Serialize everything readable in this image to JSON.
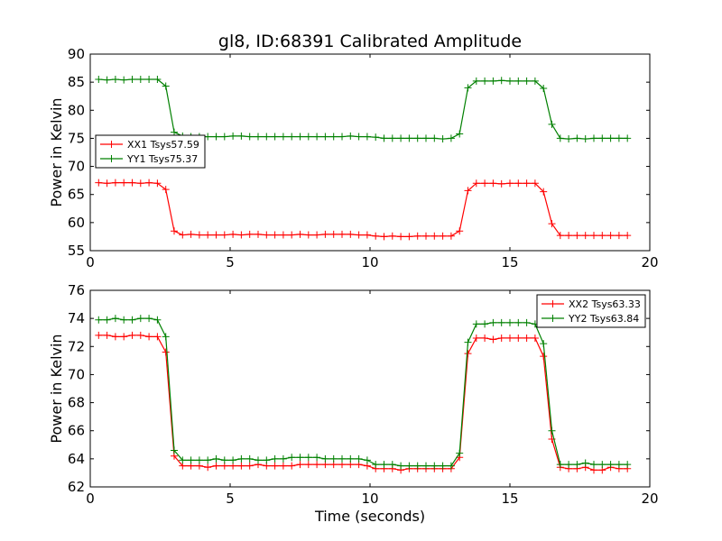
{
  "chart_data": [
    {
      "type": "line",
      "title": "gl8, ID:68391 Calibrated Amplitude",
      "xlabel": "",
      "ylabel": "Power in Kelvin",
      "xlim": [
        0,
        20
      ],
      "ylim": [
        55,
        90
      ],
      "xticks": [
        0,
        5,
        10,
        15,
        20
      ],
      "yticks": [
        55,
        60,
        65,
        70,
        75,
        80,
        85,
        90
      ],
      "legend_position": "center-left",
      "series": [
        {
          "name": "XX1 Tsys57.59",
          "color": "#ff0000",
          "x": [
            0.3,
            0.6,
            0.9,
            1.2,
            1.5,
            1.8,
            2.1,
            2.4,
            2.7,
            3.0,
            3.3,
            3.6,
            3.9,
            4.2,
            4.5,
            4.8,
            5.1,
            5.4,
            5.7,
            6.0,
            6.3,
            6.6,
            6.9,
            7.2,
            7.5,
            7.8,
            8.1,
            8.4,
            8.7,
            9.0,
            9.3,
            9.6,
            9.9,
            10.2,
            10.5,
            10.8,
            11.1,
            11.4,
            11.7,
            12.0,
            12.3,
            12.6,
            12.9,
            13.2,
            13.5,
            13.8,
            14.1,
            14.4,
            14.7,
            15.0,
            15.3,
            15.6,
            15.9,
            16.2,
            16.5,
            16.8,
            17.1,
            17.4,
            17.7,
            18.0,
            18.3,
            18.6,
            18.9,
            19.2
          ],
          "values": [
            67.1,
            67.0,
            67.1,
            67.1,
            67.1,
            67.0,
            67.1,
            67.0,
            65.9,
            58.5,
            57.8,
            57.9,
            57.8,
            57.8,
            57.8,
            57.8,
            57.9,
            57.8,
            57.9,
            57.9,
            57.8,
            57.8,
            57.8,
            57.8,
            57.9,
            57.8,
            57.8,
            57.9,
            57.9,
            57.9,
            57.9,
            57.8,
            57.8,
            57.6,
            57.5,
            57.6,
            57.5,
            57.5,
            57.6,
            57.6,
            57.6,
            57.6,
            57.6,
            58.5,
            65.7,
            67.0,
            67.0,
            67.0,
            66.9,
            67.0,
            67.0,
            67.0,
            67.0,
            65.5,
            59.8,
            57.7,
            57.7,
            57.7,
            57.7,
            57.7,
            57.7,
            57.7,
            57.7,
            57.7
          ]
        },
        {
          "name": "YY1 Tsys75.37",
          "color": "#008000",
          "x": [
            0.3,
            0.6,
            0.9,
            1.2,
            1.5,
            1.8,
            2.1,
            2.4,
            2.7,
            3.0,
            3.3,
            3.6,
            3.9,
            4.2,
            4.5,
            4.8,
            5.1,
            5.4,
            5.7,
            6.0,
            6.3,
            6.6,
            6.9,
            7.2,
            7.5,
            7.8,
            8.1,
            8.4,
            8.7,
            9.0,
            9.3,
            9.6,
            9.9,
            10.2,
            10.5,
            10.8,
            11.1,
            11.4,
            11.7,
            12.0,
            12.3,
            12.6,
            12.9,
            13.2,
            13.5,
            13.8,
            14.1,
            14.4,
            14.7,
            15.0,
            15.3,
            15.6,
            15.9,
            16.2,
            16.5,
            16.8,
            17.1,
            17.4,
            17.7,
            18.0,
            18.3,
            18.6,
            18.9,
            19.2
          ],
          "values": [
            85.5,
            85.4,
            85.5,
            85.4,
            85.5,
            85.5,
            85.5,
            85.5,
            84.3,
            76.1,
            75.4,
            75.3,
            75.3,
            75.3,
            75.3,
            75.3,
            75.4,
            75.4,
            75.3,
            75.3,
            75.3,
            75.3,
            75.3,
            75.3,
            75.3,
            75.3,
            75.3,
            75.3,
            75.3,
            75.3,
            75.4,
            75.3,
            75.3,
            75.2,
            75.0,
            75.0,
            75.0,
            75.0,
            75.0,
            75.0,
            75.0,
            74.9,
            75.0,
            75.8,
            84.0,
            85.2,
            85.2,
            85.2,
            85.3,
            85.2,
            85.2,
            85.2,
            85.2,
            83.9,
            77.5,
            75.0,
            74.9,
            75.0,
            74.9,
            75.0,
            75.0,
            75.0,
            75.0,
            75.0
          ]
        }
      ]
    },
    {
      "type": "line",
      "title": "",
      "xlabel": "Time (seconds)",
      "ylabel": "Power in Kelvin",
      "xlim": [
        0,
        20
      ],
      "ylim": [
        62,
        76
      ],
      "xticks": [
        0,
        5,
        10,
        15,
        20
      ],
      "yticks": [
        62,
        64,
        66,
        68,
        70,
        72,
        74,
        76
      ],
      "legend_position": "top-right",
      "series": [
        {
          "name": "XX2 Tsys63.33",
          "color": "#ff0000",
          "x": [
            0.3,
            0.6,
            0.9,
            1.2,
            1.5,
            1.8,
            2.1,
            2.4,
            2.7,
            3.0,
            3.3,
            3.6,
            3.9,
            4.2,
            4.5,
            4.8,
            5.1,
            5.4,
            5.7,
            6.0,
            6.3,
            6.6,
            6.9,
            7.2,
            7.5,
            7.8,
            8.1,
            8.4,
            8.7,
            9.0,
            9.3,
            9.6,
            9.9,
            10.2,
            10.5,
            10.8,
            11.1,
            11.4,
            11.7,
            12.0,
            12.3,
            12.6,
            12.9,
            13.2,
            13.5,
            13.8,
            14.1,
            14.4,
            14.7,
            15.0,
            15.3,
            15.6,
            15.9,
            16.2,
            16.5,
            16.8,
            17.1,
            17.4,
            17.7,
            18.0,
            18.3,
            18.6,
            18.9,
            19.2
          ],
          "values": [
            72.8,
            72.8,
            72.7,
            72.7,
            72.8,
            72.8,
            72.7,
            72.7,
            71.6,
            64.2,
            63.5,
            63.5,
            63.5,
            63.4,
            63.5,
            63.5,
            63.5,
            63.5,
            63.5,
            63.6,
            63.5,
            63.5,
            63.5,
            63.5,
            63.6,
            63.6,
            63.6,
            63.6,
            63.6,
            63.6,
            63.6,
            63.6,
            63.5,
            63.3,
            63.3,
            63.3,
            63.2,
            63.3,
            63.3,
            63.3,
            63.3,
            63.3,
            63.3,
            64.1,
            71.5,
            72.6,
            72.6,
            72.5,
            72.6,
            72.6,
            72.6,
            72.6,
            72.6,
            71.3,
            65.4,
            63.4,
            63.3,
            63.3,
            63.4,
            63.2,
            63.2,
            63.4,
            63.3,
            63.3
          ]
        },
        {
          "name": "YY2 Tsys63.84",
          "color": "#008000",
          "x": [
            0.3,
            0.6,
            0.9,
            1.2,
            1.5,
            1.8,
            2.1,
            2.4,
            2.7,
            3.0,
            3.3,
            3.6,
            3.9,
            4.2,
            4.5,
            4.8,
            5.1,
            5.4,
            5.7,
            6.0,
            6.3,
            6.6,
            6.9,
            7.2,
            7.5,
            7.8,
            8.1,
            8.4,
            8.7,
            9.0,
            9.3,
            9.6,
            9.9,
            10.2,
            10.5,
            10.8,
            11.1,
            11.4,
            11.7,
            12.0,
            12.3,
            12.6,
            12.9,
            13.2,
            13.5,
            13.8,
            14.1,
            14.4,
            14.7,
            15.0,
            15.3,
            15.6,
            15.9,
            16.2,
            16.5,
            16.8,
            17.1,
            17.4,
            17.7,
            18.0,
            18.3,
            18.6,
            18.9,
            19.2
          ],
          "values": [
            73.9,
            73.9,
            74.0,
            73.9,
            73.9,
            74.0,
            74.0,
            73.9,
            72.7,
            64.6,
            63.9,
            63.9,
            63.9,
            63.9,
            64.0,
            63.9,
            63.9,
            64.0,
            64.0,
            63.9,
            63.9,
            64.0,
            64.0,
            64.1,
            64.1,
            64.1,
            64.1,
            64.0,
            64.0,
            64.0,
            64.0,
            64.0,
            63.9,
            63.6,
            63.6,
            63.6,
            63.5,
            63.5,
            63.5,
            63.5,
            63.5,
            63.5,
            63.5,
            64.4,
            72.3,
            73.6,
            73.6,
            73.7,
            73.7,
            73.7,
            73.7,
            73.7,
            73.6,
            72.2,
            66.0,
            63.6,
            63.6,
            63.6,
            63.7,
            63.6,
            63.6,
            63.6,
            63.6,
            63.6
          ]
        }
      ]
    }
  ]
}
